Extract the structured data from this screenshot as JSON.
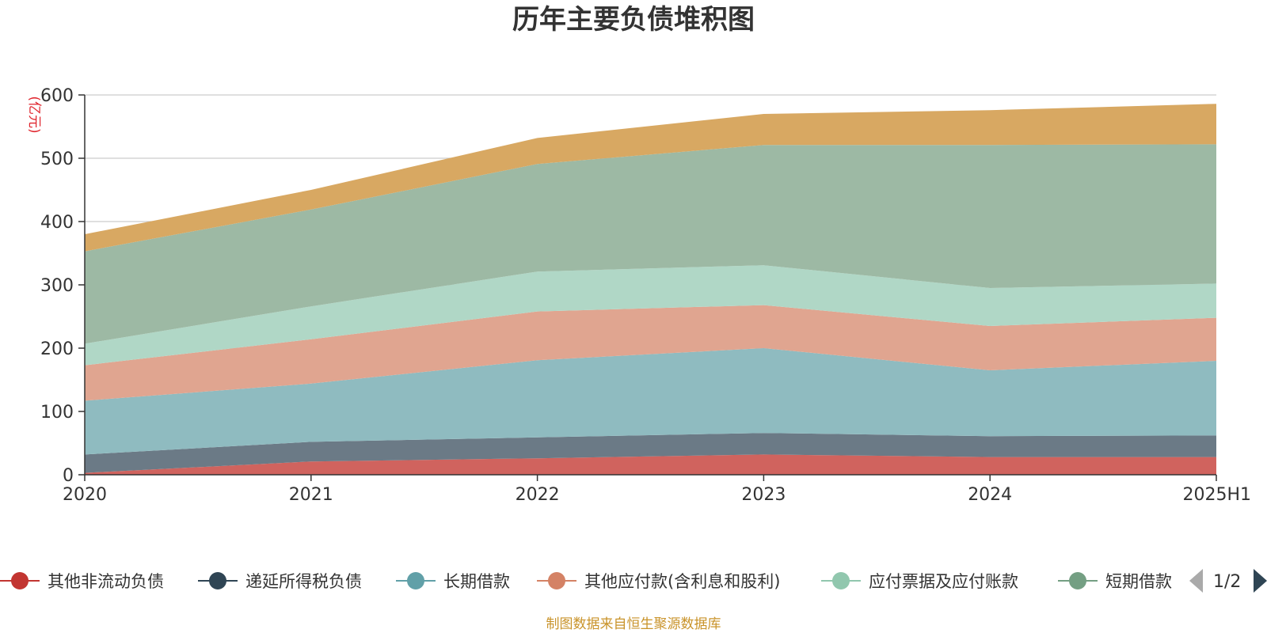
{
  "chart_data": {
    "type": "area",
    "stacked": true,
    "title": "历年主要负债堆积图",
    "unit": "(亿元)",
    "x": [
      "2020",
      "2021",
      "2022",
      "2023",
      "2024",
      "2025H1"
    ],
    "ylim": [
      0,
      600
    ],
    "yticks": [
      0,
      100,
      200,
      300,
      400,
      500,
      600
    ],
    "grid": true,
    "legend_position": "bottom",
    "series": [
      {
        "name": "其他非流动负债",
        "color": "#d0635e",
        "values": [
          3,
          21,
          26,
          32,
          28,
          28
        ]
      },
      {
        "name": "递延所得税负债",
        "color": "#6b7a86",
        "values": [
          29,
          31,
          33,
          34,
          33,
          34
        ]
      },
      {
        "name": "长期借款",
        "color": "#8fbbc0",
        "values": [
          85,
          92,
          122,
          134,
          104,
          118
        ]
      },
      {
        "name": "其他应付款(含利息和股利)",
        "color": "#e0a590",
        "values": [
          56,
          70,
          77,
          68,
          70,
          68
        ]
      },
      {
        "name": "应付票据及应付账款",
        "color": "#b0d7c6",
        "values": [
          34,
          52,
          63,
          63,
          60,
          54
        ]
      },
      {
        "name": "短期借款",
        "color": "#9db9a4",
        "values": [
          146,
          153,
          170,
          190,
          226,
          220
        ]
      },
      {
        "name": "",
        "color": "#d8a862",
        "values": [
          27,
          31,
          41,
          49,
          55,
          64
        ]
      }
    ]
  },
  "legend": {
    "items": [
      {
        "label": "其他非流动负债",
        "color": "#c23531"
      },
      {
        "label": "递延所得税负债",
        "color": "#2f4554"
      },
      {
        "label": "长期借款",
        "color": "#61a0a8"
      },
      {
        "label": "其他应付款(含利息和股利)",
        "color": "#d48265"
      },
      {
        "label": "应付票据及应付账款",
        "color": "#91c7ae"
      },
      {
        "label": "短期借款",
        "color": "#749f83"
      }
    ],
    "page": "1/2"
  },
  "source": "制图数据来自恒生聚源数据库"
}
